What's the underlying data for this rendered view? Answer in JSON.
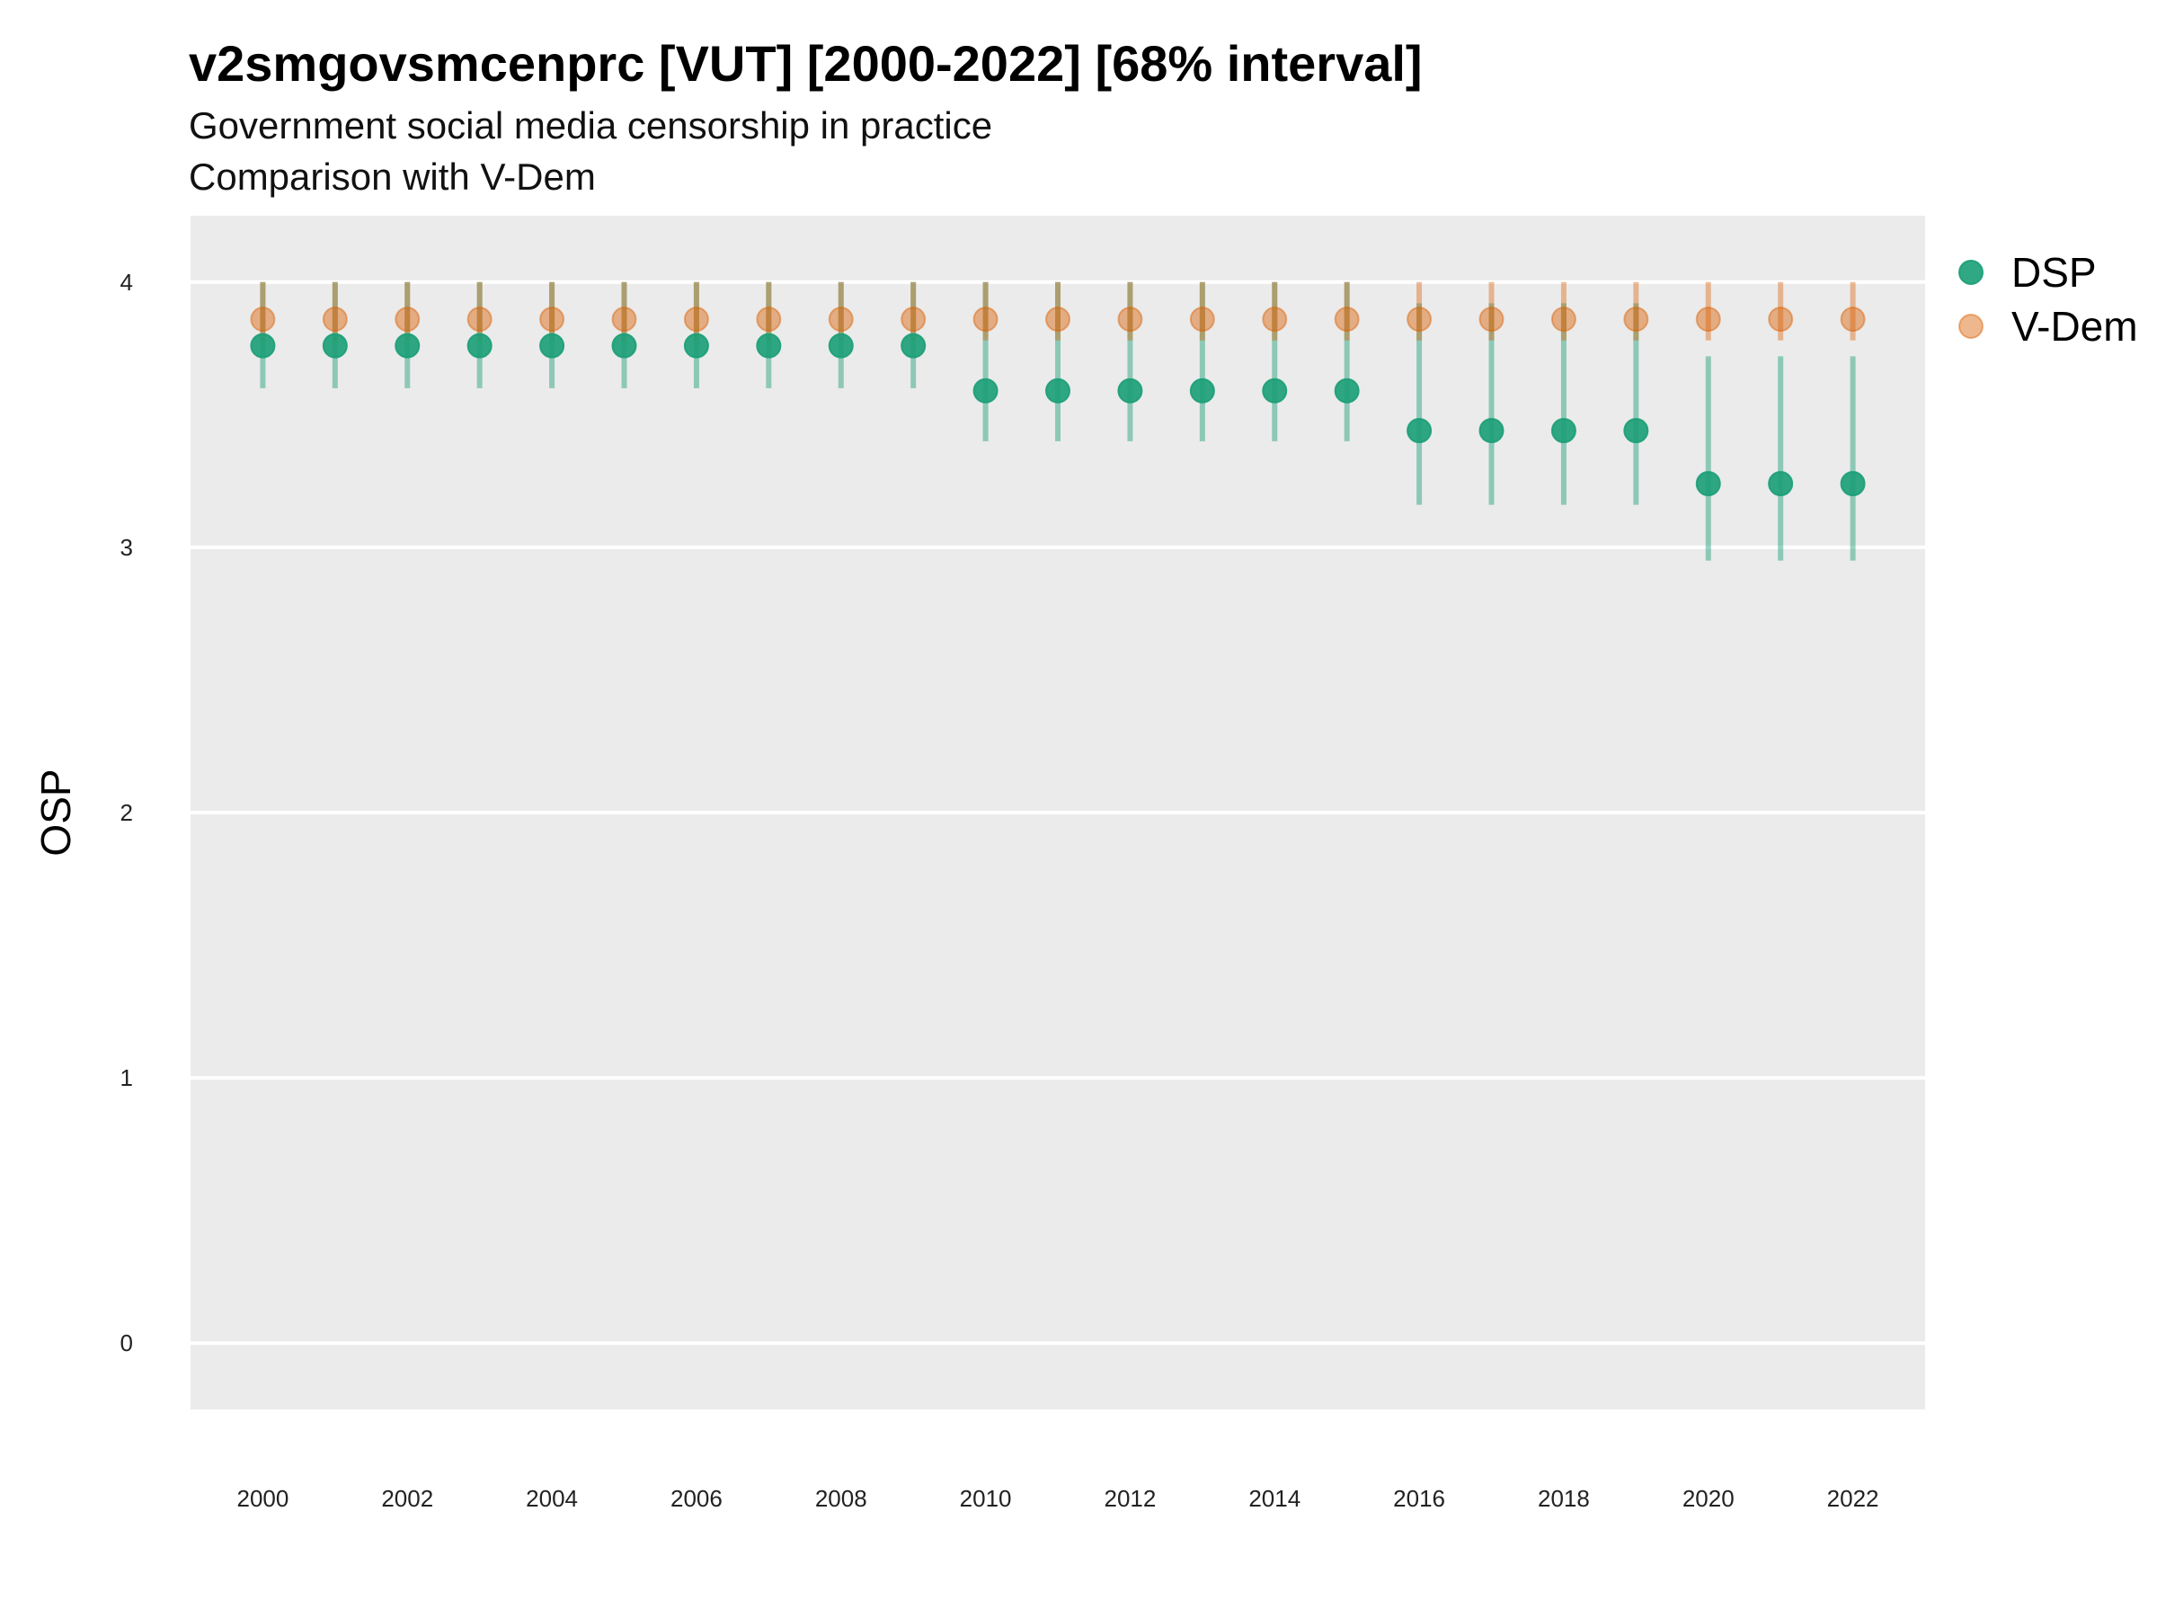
{
  "chart_data": {
    "type": "scatter",
    "title": "v2smgovsmcenprc [VUT] [2000-2022] [68% interval]",
    "subtitle": [
      "Government social media censorship in practice",
      "Comparison with V-Dem"
    ],
    "xlabel": "",
    "ylabel": "OSP",
    "ylim": [
      -0.25,
      4.25
    ],
    "xlim": [
      1999.0,
      2023.0
    ],
    "y_ticks": [
      0,
      1,
      2,
      3,
      4
    ],
    "x_ticks": [
      2000,
      2002,
      2004,
      2006,
      2008,
      2010,
      2012,
      2014,
      2016,
      2018,
      2020,
      2022
    ],
    "grid": true,
    "legend_position": "right-top",
    "x": [
      2000,
      2001,
      2002,
      2003,
      2004,
      2005,
      2006,
      2007,
      2008,
      2009,
      2010,
      2011,
      2012,
      2013,
      2014,
      2015,
      2016,
      2017,
      2018,
      2019,
      2020,
      2021,
      2022
    ],
    "series": [
      {
        "name": "DSP",
        "color": "#1b9e77",
        "values": [
          3.76,
          3.76,
          3.76,
          3.76,
          3.76,
          3.76,
          3.76,
          3.76,
          3.76,
          3.76,
          3.59,
          3.59,
          3.59,
          3.59,
          3.59,
          3.59,
          3.44,
          3.44,
          3.44,
          3.44,
          3.24,
          3.24,
          3.24
        ],
        "lower": [
          3.6,
          3.6,
          3.6,
          3.6,
          3.6,
          3.6,
          3.6,
          3.6,
          3.6,
          3.6,
          3.4,
          3.4,
          3.4,
          3.4,
          3.4,
          3.4,
          3.16,
          3.16,
          3.16,
          3.16,
          2.95,
          2.95,
          2.95
        ],
        "upper": [
          4.0,
          4.0,
          4.0,
          4.0,
          4.0,
          4.0,
          4.0,
          4.0,
          4.0,
          4.0,
          4.0,
          4.0,
          4.0,
          4.0,
          4.0,
          4.0,
          3.92,
          3.92,
          3.92,
          3.92,
          3.72,
          3.72,
          3.72
        ]
      },
      {
        "name": "V-Dem",
        "color": "#d95f02",
        "values": [
          3.86,
          3.86,
          3.86,
          3.86,
          3.86,
          3.86,
          3.86,
          3.86,
          3.86,
          3.86,
          3.86,
          3.86,
          3.86,
          3.86,
          3.86,
          3.86,
          3.86,
          3.86,
          3.86,
          3.86,
          3.86,
          3.86,
          3.86
        ],
        "lower": [
          3.78,
          3.78,
          3.78,
          3.78,
          3.78,
          3.78,
          3.78,
          3.78,
          3.78,
          3.78,
          3.78,
          3.78,
          3.78,
          3.78,
          3.78,
          3.78,
          3.78,
          3.78,
          3.78,
          3.78,
          3.78,
          3.78,
          3.78
        ],
        "upper": [
          4.0,
          4.0,
          4.0,
          4.0,
          4.0,
          4.0,
          4.0,
          4.0,
          4.0,
          4.0,
          4.0,
          4.0,
          4.0,
          4.0,
          4.0,
          4.0,
          4.0,
          4.0,
          4.0,
          4.0,
          4.0,
          4.0,
          4.0
        ]
      }
    ]
  }
}
